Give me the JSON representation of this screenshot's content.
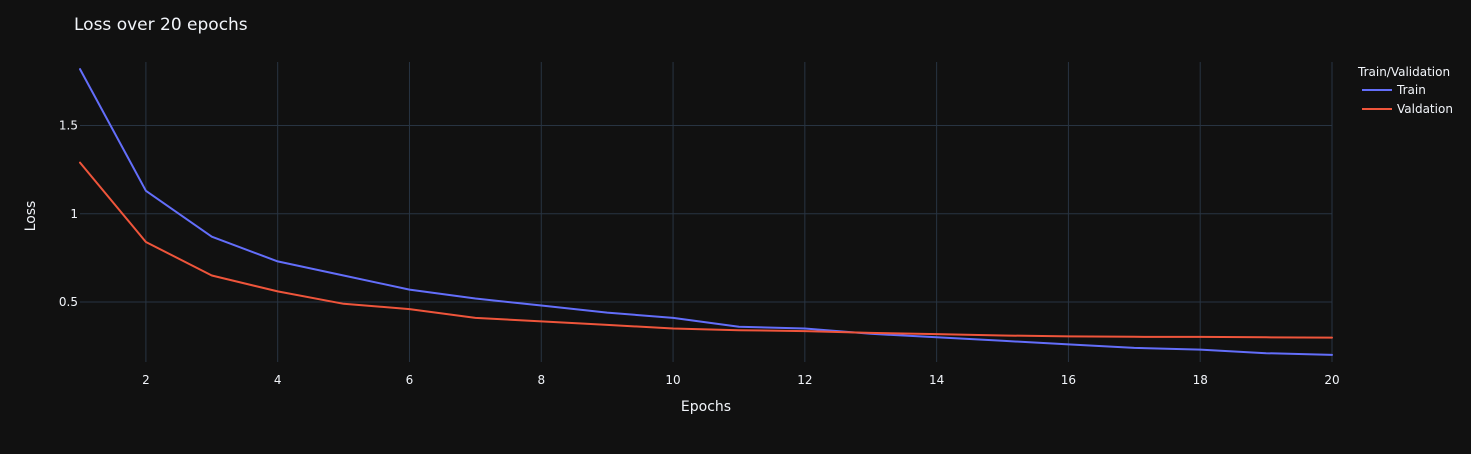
{
  "chart_data": {
    "type": "line",
    "title": "Loss over 20 epochs",
    "xlabel": "Epochs",
    "ylabel": "Loss",
    "xlim": [
      1,
      20
    ],
    "ylim": [
      0.16,
      1.86
    ],
    "x_ticks": [
      2,
      4,
      6,
      8,
      10,
      12,
      14,
      16,
      18,
      20
    ],
    "y_ticks": [
      0.5,
      1,
      1.5
    ],
    "y_tick_labels": [
      "0.5",
      "1",
      "1.5"
    ],
    "grid": true,
    "legend": {
      "title": "Train/Validation",
      "position": "top-right"
    },
    "x": [
      1,
      2,
      3,
      4,
      5,
      6,
      7,
      8,
      9,
      10,
      11,
      12,
      13,
      14,
      15,
      16,
      17,
      18,
      19,
      20
    ],
    "series": [
      {
        "name": "Train",
        "color": "#636efa",
        "values": [
          1.82,
          1.13,
          0.87,
          0.73,
          0.65,
          0.57,
          0.52,
          0.48,
          0.44,
          0.41,
          0.36,
          0.35,
          0.32,
          0.3,
          0.28,
          0.26,
          0.24,
          0.23,
          0.21,
          0.2
        ]
      },
      {
        "name": "Valdation",
        "color": "#ef553b",
        "values": [
          1.29,
          0.84,
          0.65,
          0.56,
          0.49,
          0.46,
          0.41,
          0.39,
          0.37,
          0.35,
          0.34,
          0.335,
          0.325,
          0.318,
          0.31,
          0.305,
          0.303,
          0.302,
          0.3,
          0.298
        ]
      }
    ]
  },
  "theme": {
    "background": "#111111",
    "grid_color": "#283442",
    "text_color": "#f2f5fa"
  }
}
